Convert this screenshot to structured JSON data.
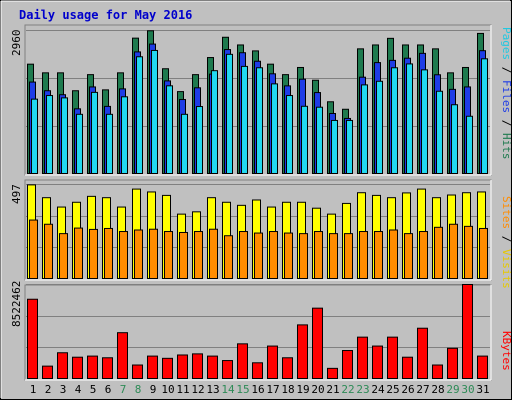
{
  "title": "Daily usage for May 2016",
  "colors": {
    "hits": "#1e7a4e",
    "files": "#1e3ce6",
    "pages": "#22d8f0",
    "visits": "#ffff00",
    "sites": "#ff8c00",
    "kbytes": "#ff0000",
    "weekday_label": "#000000",
    "weekend_label": "#2e8b57",
    "title": "#0000cc"
  },
  "side_labels": {
    "top": [
      {
        "text": "Pages",
        "color": "#22c8e0"
      },
      {
        "text": " / ",
        "color": "#000000"
      },
      {
        "text": "Files",
        "color": "#1e3ce6"
      },
      {
        "text": " / ",
        "color": "#000000"
      },
      {
        "text": "Hits",
        "color": "#1e7a4e"
      }
    ],
    "middle": [
      {
        "text": "Sites",
        "color": "#ff8c00"
      },
      {
        "text": " / ",
        "color": "#000000"
      },
      {
        "text": "Visits",
        "color": "#e6c800"
      }
    ],
    "bottom": [
      {
        "text": "KBytes",
        "color": "#ff0000"
      }
    ]
  },
  "chart_data": [
    {
      "type": "bar",
      "panel": "hits-files-pages",
      "ymax_label": "2960",
      "ylim": [
        0,
        2960
      ],
      "categories": [
        "1",
        "2",
        "3",
        "4",
        "5",
        "6",
        "7",
        "8",
        "9",
        "10",
        "11",
        "12",
        "13",
        "14",
        "15",
        "16",
        "17",
        "18",
        "19",
        "20",
        "21",
        "22",
        "23",
        "24",
        "25",
        "26",
        "27",
        "28",
        "29",
        "30",
        "31"
      ],
      "weekend": [
        false,
        false,
        false,
        false,
        false,
        false,
        true,
        true,
        false,
        false,
        false,
        false,
        false,
        true,
        true,
        false,
        false,
        false,
        false,
        false,
        false,
        true,
        true,
        false,
        false,
        false,
        false,
        false,
        true,
        true,
        false
      ],
      "series": [
        {
          "name": "Hits",
          "values": [
            2268,
            2090,
            2090,
            1722,
            2053,
            1740,
            2090,
            2803,
            2954,
            2174,
            1704,
            2053,
            2404,
            2821,
            2663,
            2541,
            2268,
            2053,
            2200,
            1938,
            1495,
            1341,
            2583,
            2663,
            2799,
            2663,
            2663,
            2583,
            2090,
            2200,
            2900
          ]
        },
        {
          "name": "Files",
          "values": [
            1900,
            1722,
            1640,
            1350,
            1800,
            1400,
            1760,
            2520,
            2681,
            1924,
            1541,
            1782,
            2063,
            2568,
            2503,
            2328,
            2070,
            1822,
            1959,
            1684,
            1254,
            1152,
            2000,
            2300,
            2346,
            2390,
            2490,
            2050,
            1750,
            1800,
            2545
          ]
        },
        {
          "name": "Pages",
          "values": [
            1549,
            1623,
            1575,
            1237,
            1688,
            1237,
            1597,
            2420,
            2550,
            1823,
            1237,
            1397,
            2134,
            2470,
            2222,
            2194,
            1863,
            1623,
            1402,
            1383,
            1111,
            1111,
            1842,
            1916,
            2194,
            2273,
            2151,
            1711,
            1434,
            1197,
            2378
          ]
        }
      ]
    },
    {
      "type": "bar",
      "panel": "visits-sites",
      "ymax_label": "497",
      "ylim": [
        0,
        497
      ],
      "categories": [
        "1",
        "2",
        "3",
        "4",
        "5",
        "6",
        "7",
        "8",
        "9",
        "10",
        "11",
        "12",
        "13",
        "14",
        "15",
        "16",
        "17",
        "18",
        "19",
        "20",
        "21",
        "22",
        "23",
        "24",
        "25",
        "26",
        "27",
        "28",
        "29",
        "30",
        "31"
      ],
      "series": [
        {
          "name": "Visits",
          "values": [
            495,
            428,
            379,
            404,
            435,
            428,
            379,
            473,
            458,
            440,
            342,
            354,
            428,
            404,
            388,
            416,
            379,
            404,
            404,
            373,
            342,
            398,
            454,
            440,
            428,
            453,
            473,
            428,
            442,
            454,
            458
          ]
        },
        {
          "name": "Sites",
          "values": [
            311,
            289,
            240,
            269,
            262,
            267,
            251,
            259,
            263,
            251,
            246,
            251,
            263,
            229,
            251,
            243,
            251,
            243,
            240,
            251,
            240,
            240,
            251,
            251,
            259,
            240,
            251,
            273,
            289,
            278,
            267
          ]
        }
      ]
    },
    {
      "type": "bar",
      "panel": "kbytes",
      "ymax_label": "8522462",
      "ylim": [
        0,
        8522462
      ],
      "categories": [
        "1",
        "2",
        "3",
        "4",
        "5",
        "6",
        "7",
        "8",
        "9",
        "10",
        "11",
        "12",
        "13",
        "14",
        "15",
        "16",
        "17",
        "18",
        "19",
        "20",
        "21",
        "22",
        "23",
        "24",
        "25",
        "26",
        "27",
        "28",
        "29",
        "30",
        "31"
      ],
      "series": [
        {
          "name": "KBytes",
          "values": [
            7200000,
            1200000,
            2400000,
            2000000,
            2100000,
            1950000,
            4200000,
            1300000,
            2100000,
            1900000,
            2200000,
            2300000,
            2100000,
            1700000,
            3200000,
            1500000,
            3000000,
            1950000,
            4900000,
            6400000,
            1000000,
            2600000,
            3800000,
            3000000,
            3800000,
            2000000,
            4600000,
            1300000,
            2800000,
            8522462,
            2100000
          ]
        }
      ]
    }
  ]
}
